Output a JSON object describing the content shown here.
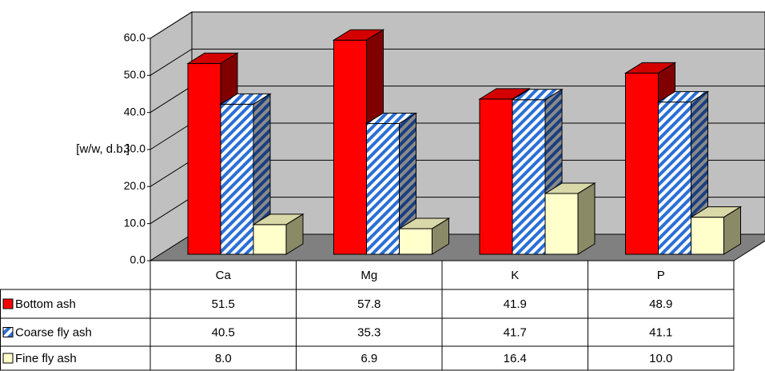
{
  "chart_data": {
    "type": "bar3d",
    "y_label": "[w/w, d.b.]",
    "categories": [
      "Ca",
      "Mg",
      "K",
      "P"
    ],
    "series": [
      {
        "name": "Bottom ash",
        "color": "#ff0000",
        "values": [
          51.5,
          57.8,
          41.9,
          48.9
        ],
        "value_labels": [
          "51.5",
          "57.8",
          "41.9",
          "48.9"
        ]
      },
      {
        "name": "Coarse fly ash",
        "color": "#2a6fd6",
        "values": [
          40.5,
          35.3,
          41.7,
          41.1
        ],
        "value_labels": [
          "40.5",
          "35.3",
          "41.7",
          "41.1"
        ]
      },
      {
        "name": "Fine fly ash",
        "color": "#ffffcc",
        "values": [
          8.0,
          6.9,
          16.4,
          10.0
        ],
        "value_labels": [
          "8.0",
          "6.9",
          "16.4",
          "10.0"
        ]
      }
    ],
    "ylim": [
      0,
      60
    ],
    "yticks": [
      {
        "value": 0,
        "label": "0.0"
      },
      {
        "value": 10,
        "label": "10.0"
      },
      {
        "value": 20,
        "label": "20.0"
      },
      {
        "value": 30,
        "label": "30.0"
      },
      {
        "value": 40,
        "label": "40.0"
      },
      {
        "value": 50,
        "label": "50.0"
      },
      {
        "value": 60,
        "label": "60.0"
      }
    ],
    "grid": true
  }
}
